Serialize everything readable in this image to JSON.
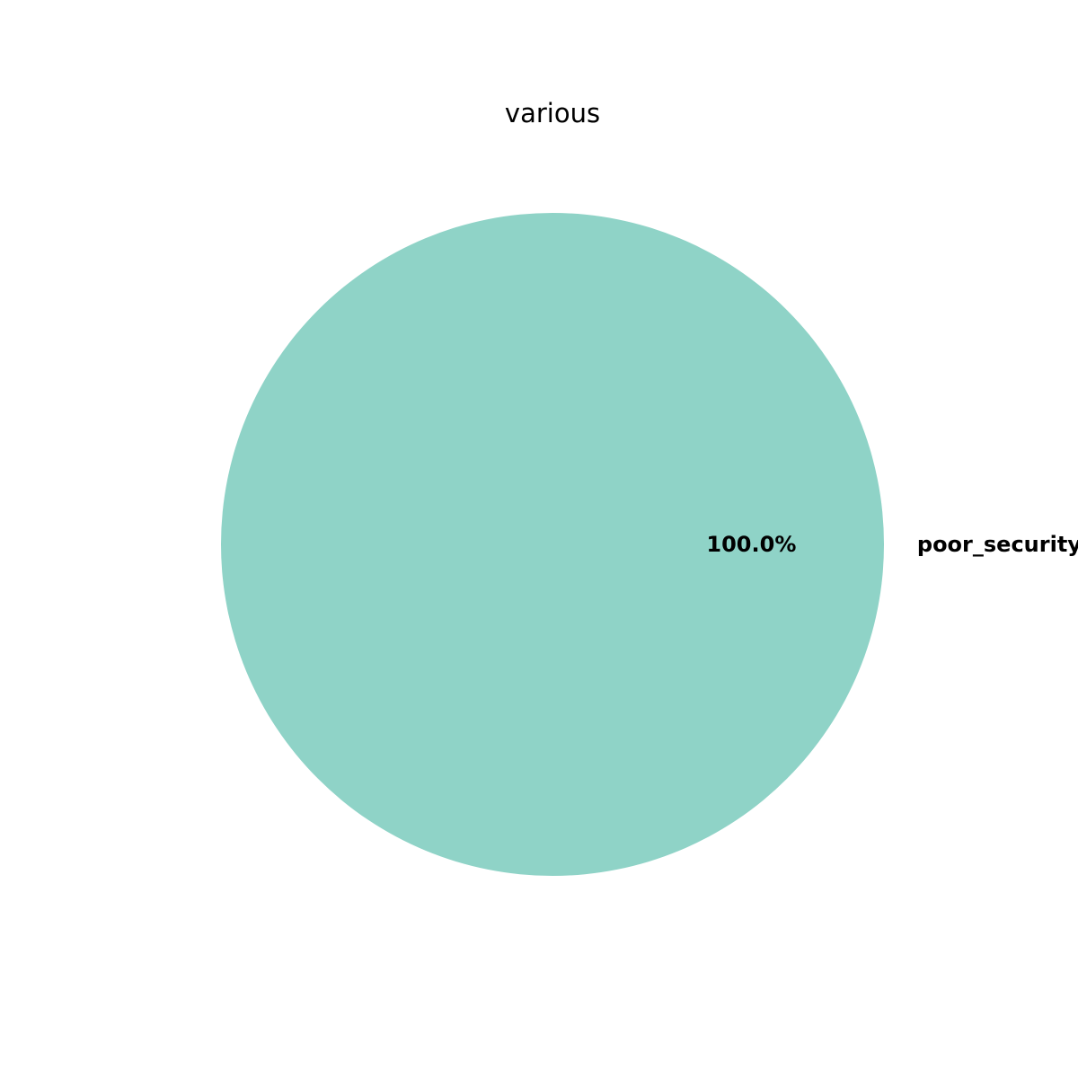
{
  "chart_data": {
    "type": "pie",
    "title": "various",
    "categories": [
      "poor_security"
    ],
    "values": [
      100.0
    ],
    "percent_labels": [
      "100.0%"
    ],
    "colors": [
      "#8fd3c7"
    ],
    "legend": "none",
    "grid": false
  }
}
